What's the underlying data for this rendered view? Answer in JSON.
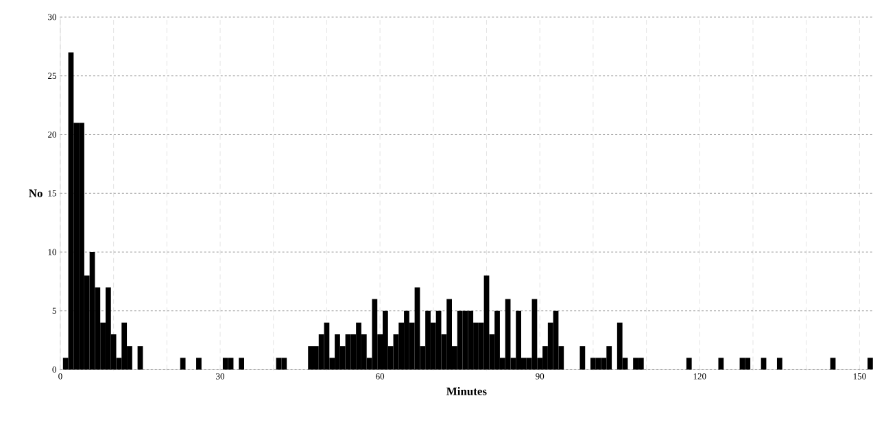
{
  "chart_data": {
    "type": "histogram",
    "xlabel": "Minutes",
    "ylabel": "No",
    "color": "#000000",
    "bins": [
      0.5,
      1.5,
      2.5,
      3.5,
      4.5,
      5.5,
      6.5,
      7.5,
      8.5,
      9.5,
      10.5,
      11.5,
      12.5,
      13.5,
      14.5,
      15.5,
      16.5,
      17.5,
      18.5,
      19.5,
      20.5,
      21.5,
      22.5,
      23.5,
      24.5,
      25.5,
      26.5,
      27.5,
      28.5,
      29.5,
      30.5,
      31.5,
      32.5,
      33.5,
      34.5,
      35.5,
      36.5,
      37.5,
      38.5,
      39.5,
      40.5,
      41.5,
      42.5,
      43.5,
      44.5,
      45.5,
      46.5,
      47.5,
      48.5,
      49.5,
      50.5,
      51.5,
      52.5,
      53.5,
      54.5,
      55.5,
      56.5,
      57.5,
      58.5,
      59.5,
      60.5,
      61.5,
      62.5,
      63.5,
      64.5,
      65.5,
      66.5,
      67.5,
      68.5,
      69.5,
      70.5,
      71.5,
      72.5,
      73.5,
      74.5,
      75.5,
      76.5,
      77.5,
      78.5,
      79.5,
      80.5,
      81.5,
      82.5,
      83.5,
      84.5,
      85.5,
      86.5,
      87.5,
      88.5,
      89.5,
      90.5,
      91.5,
      92.5,
      93.5,
      94.5,
      95.5,
      96.5,
      97.5,
      98.5,
      99.5,
      100.5,
      101.5,
      102.5,
      103.5,
      104.5,
      105.5,
      106.5,
      107.5,
      108.5,
      109.5,
      110.5,
      111.5,
      112.5,
      113.5,
      114.5,
      115.5,
      116.5,
      117.5,
      118.5,
      119.5,
      120.5,
      121.5,
      122.5,
      123.5,
      124.5,
      125.5,
      126.5,
      127.5,
      128.5,
      129.5,
      130.5,
      131.5,
      132.5,
      133.5,
      134.5,
      135.5,
      136.5,
      137.5,
      138.5,
      139.5,
      140.5,
      141.5,
      142.5,
      143.5,
      144.5,
      145.5,
      146.5,
      147.5,
      148.5,
      149.5,
      150.5,
      151.5,
      152.5
    ],
    "values": [
      1,
      27,
      21,
      21,
      8,
      10,
      7,
      4,
      7,
      3,
      1,
      4,
      2,
      0,
      2,
      0,
      0,
      0,
      0,
      0,
      0,
      0,
      1,
      0,
      0,
      1,
      0,
      0,
      0,
      0,
      1,
      1,
      0,
      1,
      0,
      0,
      0,
      0,
      0,
      0,
      1,
      1,
      0,
      0,
      0,
      0,
      2,
      2,
      3,
      4,
      1,
      3,
      2,
      3,
      3,
      4,
      3,
      1,
      6,
      3,
      5,
      2,
      3,
      4,
      5,
      4,
      7,
      2,
      5,
      4,
      5,
      3,
      6,
      2,
      5,
      5,
      5,
      4,
      4,
      8,
      3,
      5,
      1,
      6,
      1,
      5,
      1,
      1,
      6,
      1,
      2,
      4,
      5,
      2,
      0,
      0,
      0,
      2,
      0,
      1,
      1,
      1,
      2,
      0,
      4,
      1,
      0,
      1,
      1,
      0,
      0,
      0,
      0,
      0,
      0,
      0,
      0,
      1,
      0,
      0,
      0,
      0,
      0,
      1,
      0,
      0,
      0,
      1,
      1,
      0,
      0,
      1,
      0,
      0,
      1,
      0,
      0,
      0,
      0,
      0,
      0,
      0,
      0,
      0,
      1,
      0,
      0,
      0,
      0,
      0,
      0,
      1
    ],
    "xlim": [
      0,
      152.5
    ],
    "xticks": [
      0,
      {
        "value": 10,
        "label": null
      },
      {
        "value": 20,
        "label": null
      },
      30,
      {
        "value": 40,
        "label": null
      },
      {
        "value": 50,
        "label": null
      },
      60,
      {
        "value": 70,
        "label": null
      },
      {
        "value": 80,
        "label": null
      },
      90,
      {
        "value": 100,
        "label": null
      },
      {
        "value": 110,
        "label": null
      },
      120,
      {
        "value": 130,
        "label": null
      },
      {
        "value": 140,
        "label": null
      },
      150
    ],
    "ylim": [
      0,
      30
    ],
    "yticks": [
      0,
      5,
      10,
      15,
      20,
      25,
      30
    ],
    "grid": true
  }
}
